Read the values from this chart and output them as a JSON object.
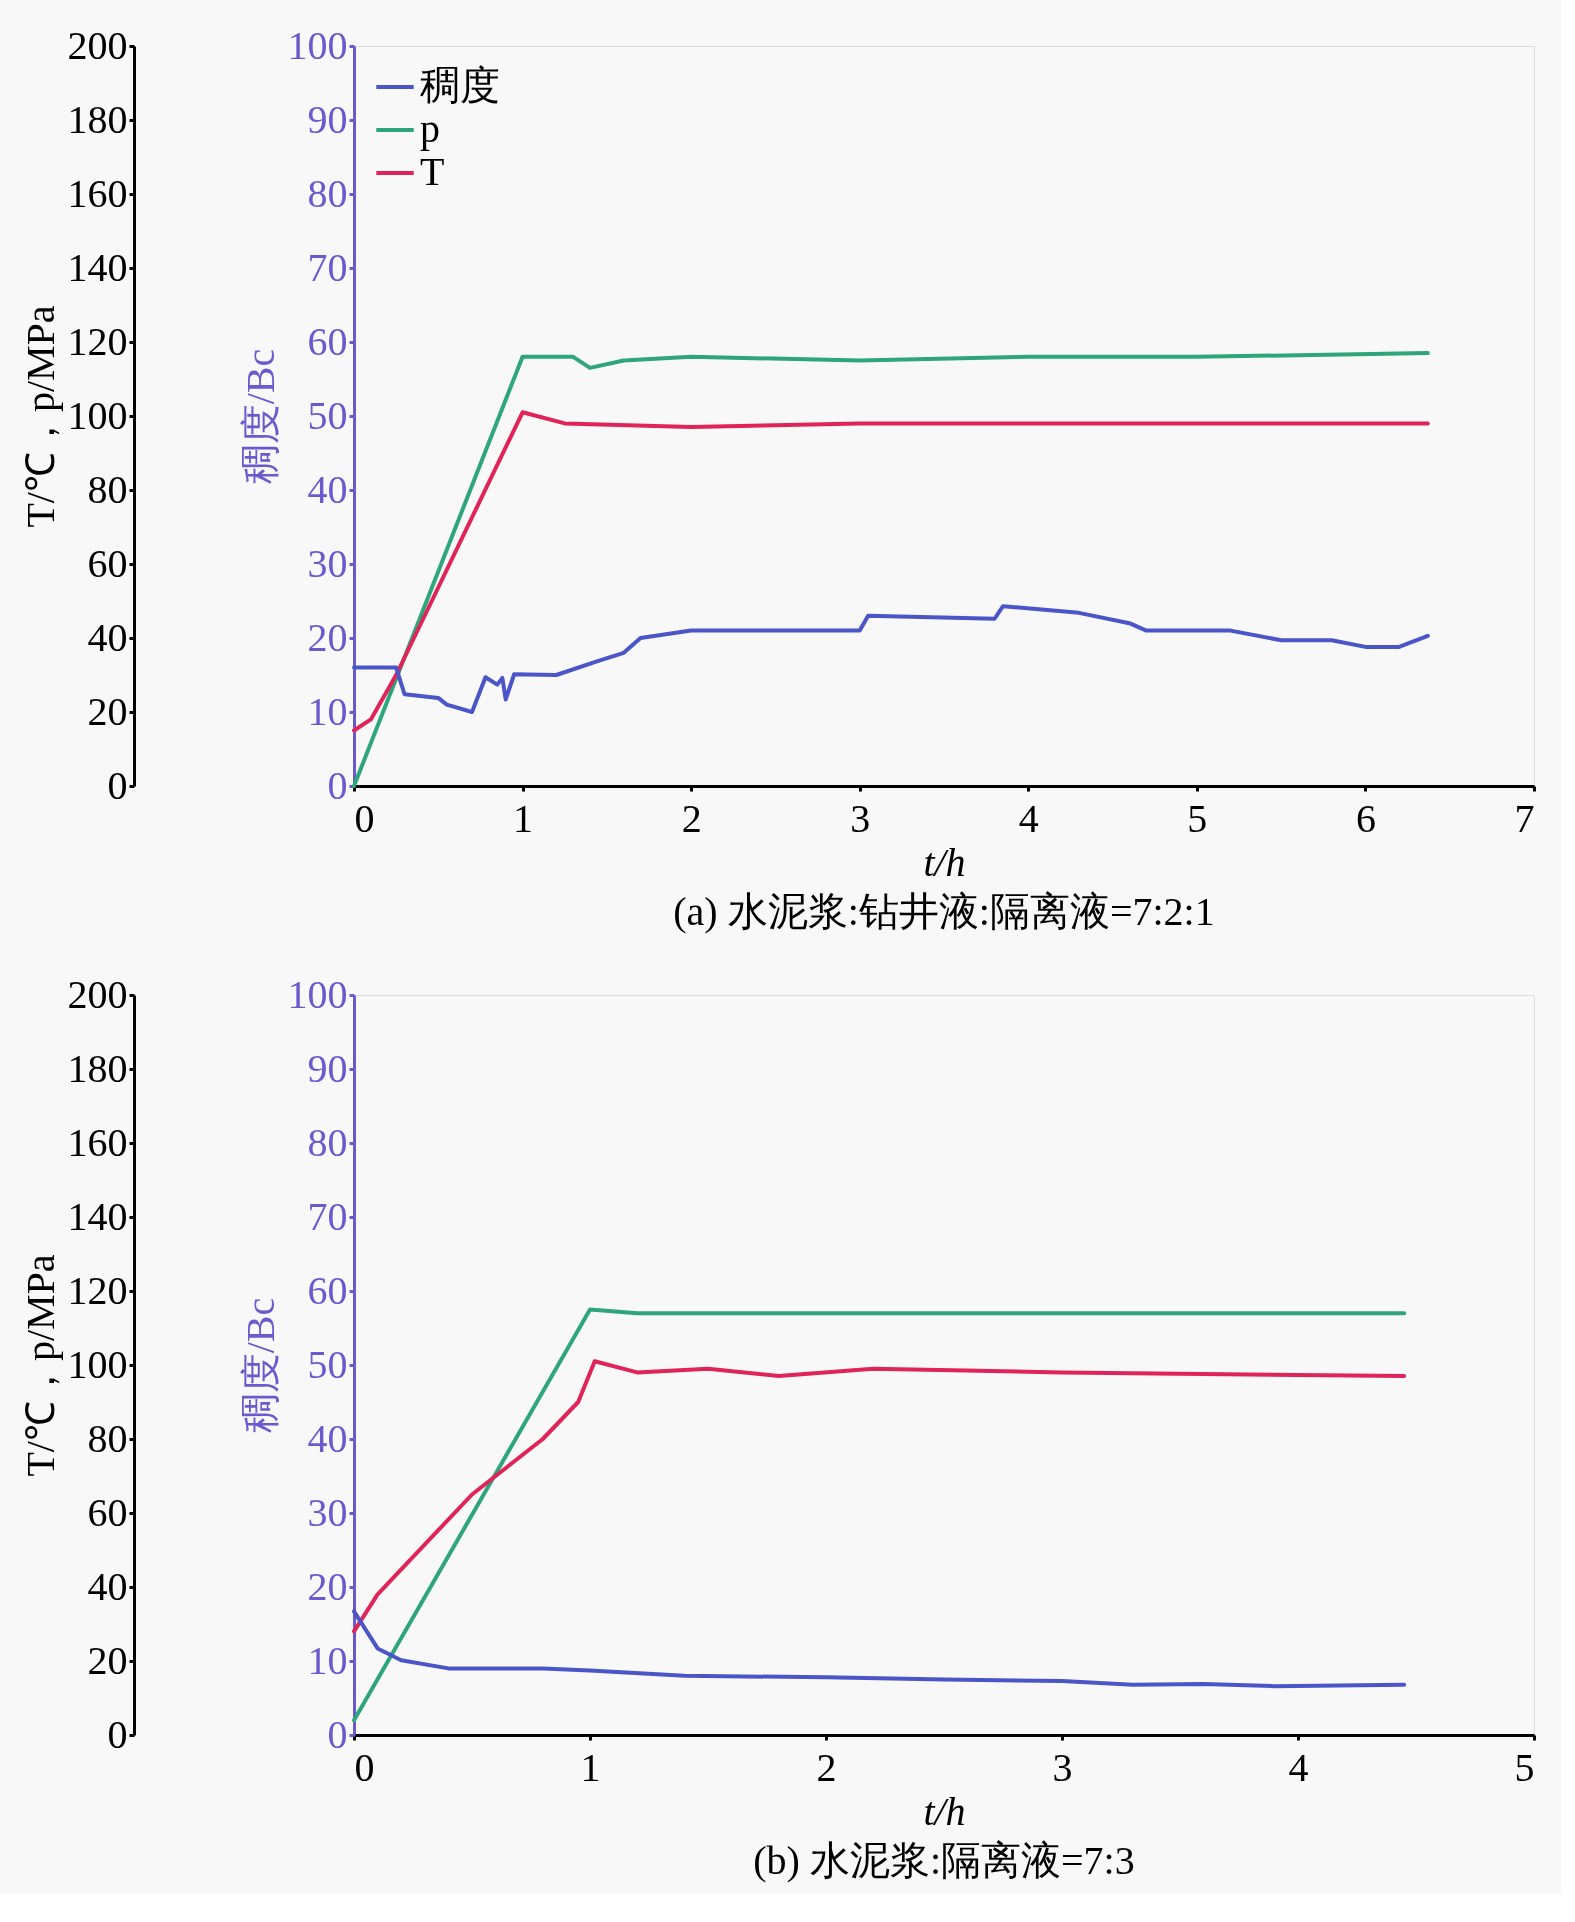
{
  "chart_data": [
    {
      "type": "line",
      "title": "(a) 水泥浆:钻井液:隔离液=7:2:1",
      "xlabel": "t/h",
      "ylabel": "T/℃，p/MPa",
      "y2label": "稠度/Bc",
      "xlim": [
        0,
        7
      ],
      "xticks": [
        0,
        1,
        2,
        3,
        4,
        5,
        6,
        7
      ],
      "ylim": [
        0,
        200
      ],
      "yticks": [
        0,
        20,
        40,
        60,
        80,
        100,
        120,
        140,
        160,
        180,
        200
      ],
      "y2lim": [
        0,
        100
      ],
      "y2ticks": [
        0,
        10,
        20,
        30,
        40,
        50,
        60,
        70,
        80,
        90,
        100
      ],
      "legend": "top left",
      "series": [
        {
          "name": "稠度",
          "color": "#4a55c8",
          "axis": "y2",
          "x": [
            0,
            0.25,
            0.3,
            0.5,
            0.55,
            0.7,
            0.78,
            0.85,
            0.88,
            0.9,
            0.95,
            1.2,
            1.45,
            1.6,
            1.7,
            2,
            3,
            3.05,
            3.8,
            3.85,
            4.3,
            4.6,
            4.7,
            5.2,
            5.5,
            5.8,
            6.0,
            6.2,
            6.37
          ],
          "values": [
            16,
            16,
            12.4,
            11.9,
            11,
            10,
            14.7,
            13.7,
            14.6,
            11.7,
            15.1,
            15,
            16.9,
            18,
            20,
            21,
            21,
            23,
            22.6,
            24.3,
            23.4,
            22,
            21,
            21,
            19.7,
            19.7,
            18.8,
            18.8,
            20.3
          ]
        },
        {
          "name": "p",
          "color": "#2ea57a",
          "x": [
            0,
            1,
            1.3,
            1.4,
            1.6,
            2,
            3,
            4,
            5,
            6.37
          ],
          "values": [
            0,
            116,
            116,
            113,
            115,
            116,
            115,
            116,
            116,
            117
          ]
        },
        {
          "name": "T",
          "color": "#e0245a",
          "x": [
            0,
            0.1,
            0.25,
            1,
            1.25,
            2,
            3,
            6.37
          ],
          "values": [
            15,
            18,
            30,
            101,
            98,
            97,
            98,
            98
          ]
        }
      ]
    },
    {
      "type": "line",
      "title": "(b) 水泥浆:隔离液=7:3",
      "xlabel": "t/h",
      "ylabel": "T/℃，p/MPa",
      "y2label": "稠度/Bc",
      "xlim": [
        0,
        5
      ],
      "xticks": [
        0,
        1,
        2,
        3,
        4,
        5
      ],
      "ylim": [
        0,
        200
      ],
      "yticks": [
        0,
        20,
        40,
        60,
        80,
        100,
        120,
        140,
        160,
        180,
        200
      ],
      "y2lim": [
        0,
        100
      ],
      "y2ticks": [
        0,
        10,
        20,
        30,
        40,
        50,
        60,
        70,
        80,
        90,
        100
      ],
      "legend": "top left",
      "series": [
        {
          "name": "稠度",
          "color": "#4a55c8",
          "axis": "y2",
          "x": [
            0,
            0.1,
            0.2,
            0.4,
            0.8,
            1.0,
            1.4,
            2,
            2.5,
            3,
            3.3,
            3.6,
            3.9,
            4.45
          ],
          "values": [
            16.7,
            11.7,
            10.1,
            9,
            9,
            8.7,
            8,
            7.8,
            7.5,
            7.3,
            6.8,
            6.9,
            6.6,
            6.8
          ]
        },
        {
          "name": "p",
          "color": "#2ea57a",
          "x": [
            0,
            1,
            1.2,
            4.45
          ],
          "values": [
            4,
            115,
            114,
            114
          ]
        },
        {
          "name": "T",
          "color": "#e0245a",
          "x": [
            0,
            0.1,
            0.5,
            0.8,
            0.95,
            1.02,
            1.2,
            1.5,
            1.8,
            2.2,
            3,
            4.45
          ],
          "values": [
            28,
            38,
            65,
            80,
            90,
            101,
            98,
            99,
            97,
            99,
            98,
            97
          ]
        }
      ]
    }
  ]
}
